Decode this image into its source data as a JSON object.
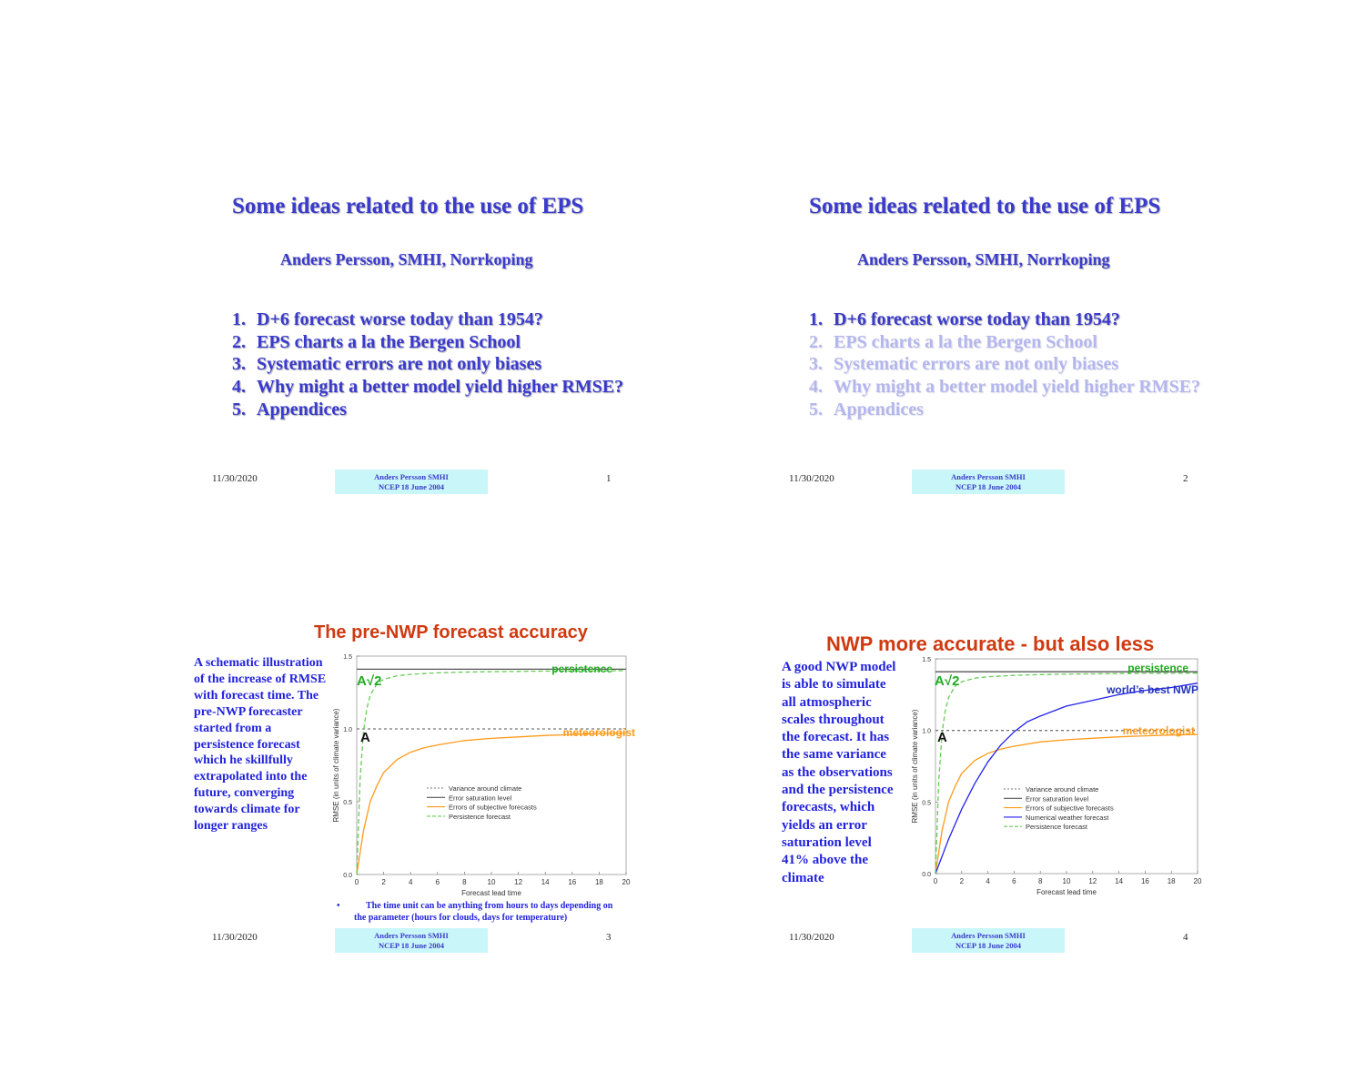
{
  "slides": [
    {
      "title": "Some ideas related to the use of EPS",
      "author": "Anders Persson, SMHI, Norrkoping",
      "items": [
        {
          "num": "1.",
          "text": "D+6 forecast worse today than 1954?"
        },
        {
          "num": "2.",
          "text": "EPS charts a la the Bergen School"
        },
        {
          "num": "3.",
          "text": "Systematic errors are not only biases"
        },
        {
          "num": "4.",
          "text": "Why might a better model yield higher RMSE?"
        },
        {
          "num": "5.",
          "text": "Appendices"
        }
      ],
      "footer": {
        "date": "11/30/2020",
        "box_line1": "Anders Persson SMHI",
        "box_line2": "NCEP 18 June 2004",
        "page": "1"
      }
    },
    {
      "title": "Some ideas related to the use of EPS",
      "author": "Anders Persson, SMHI, Norrkoping",
      "items": [
        {
          "num": "1.",
          "text": "D+6 forecast worse today than 1954?"
        },
        {
          "num": "2.",
          "text": "EPS charts a la the Bergen School"
        },
        {
          "num": "3.",
          "text": "Systematic errors are not only biases"
        },
        {
          "num": "4.",
          "text": "Why might a better model yield higher RMSE?"
        },
        {
          "num": "5.",
          "text": "Appendices"
        }
      ],
      "footer": {
        "date": "11/30/2020",
        "box_line1": "Anders Persson SMHI",
        "box_line2": "NCEP 18 June 2004",
        "page": "2"
      }
    },
    {
      "title": "The pre-NWP forecast accuracy",
      "body": "A schematic illustration\nof the increase of RMSE\nwith forecast time.  The\npre-NWP forecaster\nstarted from a\npersistence forecast\nwhich he skillfully\nextrapolated into the\nfuture, converging\ntowards climate for\nlonger ranges",
      "bullet": "•",
      "note": "The time unit can be anything from hours to days depending on the parameter (hours for clouds, days for temperature)",
      "footer": {
        "date": "11/30/2020",
        "box_line1": "Anders Persson SMHI",
        "box_line2": "NCEP 18 June 2004",
        "page": "3"
      }
    },
    {
      "title": "NWP more accurate - but also less",
      "body": "A good NWP model\nis able to simulate\nall atmospheric\nscales throughout\nthe forecast. It has\nthe same variance\nas the observations\nand the persistence\nforecasts, which\n        yields an error\nsaturation level\n41% above the\nclimate",
      "footer": {
        "date": "11/30/2020",
        "box_line1": "Anders Persson SMHI",
        "box_line2": "NCEP 18 June 2004",
        "page": "4"
      }
    }
  ],
  "chart_data": [
    {
      "type": "line",
      "xlabel": "Forecast lead time",
      "ylabel": "RMSE (in units of climate variance)",
      "xlim": [
        0,
        20
      ],
      "ylim": [
        0,
        1.5
      ],
      "xticks": [
        "0",
        "2",
        "4",
        "6",
        "8",
        "10",
        "12",
        "14",
        "16",
        "18",
        "20"
      ],
      "yticks": [
        "0.0",
        "0.5",
        "1.0",
        "1.5"
      ],
      "series": [
        {
          "name": "Variance around climate",
          "color": "#777777",
          "dash": true,
          "x": [
            0,
            20
          ],
          "y": [
            1.0,
            1.0
          ]
        },
        {
          "name": "Error saturation level",
          "color": "#555555",
          "dash": false,
          "x": [
            0,
            20
          ],
          "y": [
            1.41,
            1.41
          ]
        },
        {
          "name": "Errors of subjective forecasts",
          "color": "#ff9a1a",
          "dash": false,
          "x": [
            0,
            0.5,
            1,
            1.5,
            2,
            3,
            4,
            5,
            6,
            8,
            10,
            12,
            14,
            16,
            18,
            20
          ],
          "y": [
            0,
            0.3,
            0.5,
            0.61,
            0.7,
            0.79,
            0.84,
            0.87,
            0.89,
            0.92,
            0.935,
            0.945,
            0.955,
            0.962,
            0.968,
            0.972
          ]
        },
        {
          "name": "Persistence forecast",
          "color": "#66cc55",
          "dash": true,
          "x": [
            0,
            0.25,
            0.5,
            0.75,
            1,
            1.5,
            2,
            3,
            4,
            6,
            8,
            10,
            12,
            14,
            16,
            18,
            20
          ],
          "y": [
            0,
            0.65,
            0.98,
            1.14,
            1.23,
            1.31,
            1.34,
            1.365,
            1.375,
            1.385,
            1.39,
            1.393,
            1.395,
            1.397,
            1.398,
            1.399,
            1.4
          ]
        }
      ],
      "annotations": [
        "persistence",
        "meteorologist",
        "A√2",
        "A"
      ]
    },
    {
      "type": "line",
      "xlabel": "Forecast lead time",
      "ylabel": "RMSE (in units of climate variance)",
      "xlim": [
        0,
        20
      ],
      "ylim": [
        0,
        1.5
      ],
      "xticks": [
        "0",
        "2",
        "4",
        "6",
        "8",
        "10",
        "12",
        "14",
        "16",
        "18",
        "20"
      ],
      "yticks": [
        "0.0",
        "0.5",
        "1.0",
        "1.5"
      ],
      "series": [
        {
          "name": "Variance around climate",
          "color": "#777777",
          "dash": true,
          "x": [
            0,
            20
          ],
          "y": [
            1.0,
            1.0
          ]
        },
        {
          "name": "Error saturation level",
          "color": "#555555",
          "dash": false,
          "x": [
            0,
            20
          ],
          "y": [
            1.41,
            1.41
          ]
        },
        {
          "name": "Errors of subjective forecasts",
          "color": "#ff9a1a",
          "dash": false,
          "x": [
            0,
            0.5,
            1,
            1.5,
            2,
            3,
            4,
            5,
            6,
            8,
            10,
            12,
            14,
            16,
            18,
            20
          ],
          "y": [
            0,
            0.3,
            0.5,
            0.61,
            0.7,
            0.79,
            0.84,
            0.87,
            0.89,
            0.92,
            0.935,
            0.945,
            0.955,
            0.962,
            0.968,
            0.972
          ]
        },
        {
          "name": "Numerical weather forecast",
          "color": "#2222ee",
          "dash": false,
          "x": [
            0,
            1,
            2,
            3,
            4,
            5,
            6,
            7,
            8,
            10,
            12,
            14,
            16,
            18,
            20
          ],
          "y": [
            0,
            0.24,
            0.45,
            0.63,
            0.78,
            0.9,
            0.99,
            1.06,
            1.1,
            1.17,
            1.21,
            1.25,
            1.28,
            1.3,
            1.33
          ]
        },
        {
          "name": "Persistence forecast",
          "color": "#66cc55",
          "dash": true,
          "x": [
            0,
            0.25,
            0.5,
            0.75,
            1,
            1.5,
            2,
            3,
            4,
            6,
            8,
            10,
            12,
            14,
            16,
            18,
            20
          ],
          "y": [
            0,
            0.65,
            0.98,
            1.14,
            1.23,
            1.31,
            1.34,
            1.365,
            1.375,
            1.385,
            1.39,
            1.393,
            1.395,
            1.397,
            1.398,
            1.399,
            1.4
          ]
        }
      ],
      "annotations": [
        "persistence",
        "world’s best NWP",
        "meteorologist",
        "A√2",
        "A"
      ]
    }
  ]
}
